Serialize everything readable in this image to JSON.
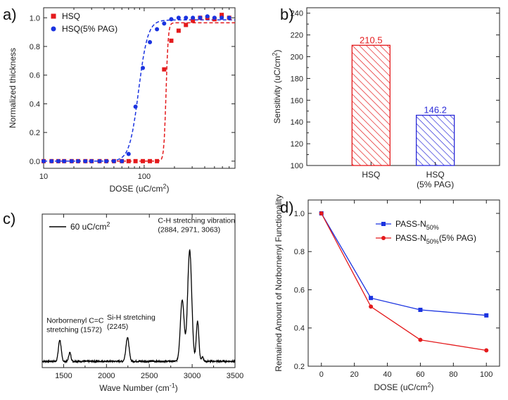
{
  "chart_data": [
    {
      "panel": "a)",
      "type": "scatter",
      "xscale": "log",
      "xlabel": "DOSE (uC/cm²)",
      "ylabel": "Normalized thickness",
      "xlim": [
        10,
        800
      ],
      "ylim": [
        -0.05,
        1.07
      ],
      "xticks": [
        10,
        100
      ],
      "xtick_labels": [
        "10",
        "100"
      ],
      "yticks": [
        0.0,
        0.2,
        0.4,
        0.6,
        0.8,
        1.0
      ],
      "ytick_labels": [
        "0.0",
        "0.2",
        "0.4",
        "0.6",
        "0.8",
        "1.0"
      ],
      "legend": "top-left",
      "series": [
        {
          "name": "HSQ",
          "color": "#e41a1c",
          "marker": "square",
          "x": [
            10,
            12,
            14,
            16,
            19,
            22,
            26,
            30,
            36,
            42,
            50,
            60,
            70,
            82,
            97,
            114,
            134,
            158,
            186,
            220,
            260,
            305,
            360,
            425,
            500,
            590,
            700
          ],
          "y": [
            0,
            0,
            0,
            0,
            0,
            0,
            0,
            0,
            0,
            0,
            0,
            0,
            0,
            0,
            0,
            0,
            0,
            0.64,
            0.84,
            0.91,
            0.95,
            0.98,
            1.0,
            1.0,
            0.99,
            1.02,
            1.0
          ]
        },
        {
          "name": "HSQ(5% PAG)",
          "color": "#1a33e0",
          "marker": "circle",
          "x": [
            10,
            12,
            14,
            16,
            19,
            22,
            26,
            30,
            36,
            42,
            50,
            60,
            70,
            82,
            97,
            114,
            134,
            158,
            186,
            220,
            260,
            305,
            360,
            425,
            500,
            590,
            700
          ],
          "y": [
            0,
            0,
            0,
            0,
            0,
            0,
            0,
            0,
            0,
            0,
            0,
            0,
            0.05,
            0.38,
            0.65,
            0.83,
            0.92,
            0.96,
            0.99,
            1.0,
            1.0,
            1.0,
            1.0,
            1.01,
            1.0,
            1.0,
            1.0
          ]
        }
      ],
      "fit_lines": [
        {
          "series": "HSQ",
          "style": "dashed",
          "midpoint": 165,
          "steepness": 40,
          "plateau": 0.965
        },
        {
          "series": "HSQ(5% PAG)",
          "style": "dashed",
          "midpoint": 88,
          "steepness": 9.5,
          "plateau": 0.985
        }
      ]
    },
    {
      "panel": "b)",
      "type": "bar",
      "categories": [
        "HSQ",
        "HSQ\n(5% PAG)"
      ],
      "category_lines": [
        [
          "HSQ"
        ],
        [
          "HSQ",
          "(5% PAG)"
        ]
      ],
      "values": [
        210.5,
        146.2
      ],
      "value_labels": [
        "210.5",
        "146.2"
      ],
      "colors": [
        "#e41a1c",
        "#2b2bd8"
      ],
      "fill": "diagonal-hatch",
      "ylabel": "Sensitivity (uC/cm²)",
      "ylim": [
        100,
        245
      ],
      "yticks": [
        100,
        120,
        140,
        160,
        180,
        200,
        220,
        240
      ],
      "ytick_labels": [
        "100",
        "120",
        "140",
        "160",
        "180",
        "200",
        "220",
        "240"
      ]
    },
    {
      "panel": "c)",
      "type": "line",
      "xlabel": "Wave Number (cm⁻¹)",
      "xlim": [
        1250,
        3500
      ],
      "xticks": [
        1500,
        2000,
        2500,
        3000,
        3500
      ],
      "xtick_labels": [
        "1500",
        "2000",
        "2500",
        "3000",
        "3500"
      ],
      "yaxis_ticks": false,
      "legend": "60 uC/cm²",
      "color": "#000000",
      "baseline": 0.05,
      "noise": 0.006,
      "peaks": [
        {
          "center": 1455,
          "height": 0.17,
          "width": 16
        },
        {
          "center": 1572,
          "height": 0.07,
          "width": 13
        },
        {
          "center": 2245,
          "height": 0.19,
          "width": 18
        },
        {
          "center": 2884,
          "height": 0.49,
          "width": 22
        },
        {
          "center": 2971,
          "height": 0.88,
          "width": 24
        },
        {
          "center": 3063,
          "height": 0.32,
          "width": 15
        },
        {
          "center": 3120,
          "height": 0.04,
          "width": 10
        }
      ],
      "annotations": [
        {
          "x": 1300,
          "y": 0.355,
          "lines": [
            "Norbornenyl C=C",
            "stretching (1572)"
          ]
        },
        {
          "x": 2005,
          "y": 0.38,
          "lines": [
            "Si-H  stretching",
            "(2245)"
          ]
        },
        {
          "x": 2600,
          "y": 1.15,
          "lines": [
            "C-H  stretching vibration",
            "(2884, 2971, 3063)"
          ]
        }
      ]
    },
    {
      "panel": "d)",
      "type": "line",
      "xlabel": "DOSE (uC/cm²)",
      "ylabel": "Remained Amount of Norbornenyl Functionality",
      "xlim": [
        -8,
        108
      ],
      "ylim": [
        0.2,
        1.07
      ],
      "xticks": [
        0,
        20,
        40,
        60,
        80,
        100
      ],
      "xtick_labels": [
        "0",
        "20",
        "40",
        "60",
        "80",
        "100"
      ],
      "yticks": [
        0.2,
        0.4,
        0.6,
        0.8,
        1.0
      ],
      "ytick_labels": [
        "0.2",
        "0.4",
        "0.6",
        "0.8",
        "1.0"
      ],
      "legend": "top-right",
      "series": [
        {
          "name": "PASS-N50%",
          "name_base": "PASS-N",
          "name_sub": "50%",
          "name_suffix": "",
          "color": "#1a33e0",
          "marker": "square",
          "x": [
            0,
            30,
            60,
            100
          ],
          "y": [
            1.0,
            0.557,
            0.495,
            0.466
          ]
        },
        {
          "name": "PASS-N50%(5% PAG)",
          "name_base": "PASS-N",
          "name_sub": "50%",
          "name_suffix": "(5% PAG)",
          "color": "#e41a1c",
          "marker": "circle",
          "x": [
            0,
            30,
            60,
            100
          ],
          "y": [
            1.0,
            0.512,
            0.338,
            0.283
          ]
        }
      ]
    }
  ]
}
